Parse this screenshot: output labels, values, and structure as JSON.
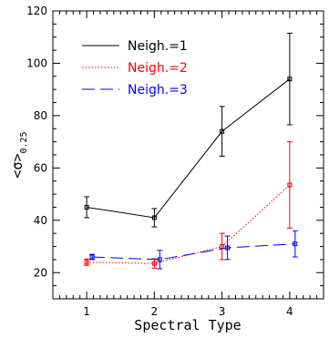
{
  "chart_data": {
    "type": "line",
    "xlabel": "Spectral Type",
    "ylabel": "<σ>0.25",
    "ylabel_main": "<σ>",
    "ylabel_sub": "0.25",
    "xlim": [
      0.5,
      4.5
    ],
    "ylim": [
      10,
      120
    ],
    "xticks": [
      1,
      2,
      3,
      4
    ],
    "yticks": [
      20,
      40,
      60,
      80,
      100,
      120
    ],
    "legend_position": "top-left",
    "grid": false,
    "series": [
      {
        "name": "Neigh.=1",
        "color": "#000000",
        "dash": "solid",
        "x": [
          1,
          2,
          3,
          4
        ],
        "y": [
          45,
          41,
          74,
          94
        ],
        "err": [
          4,
          3.5,
          9.5,
          17.5
        ]
      },
      {
        "name": "Neigh.=2",
        "color": "#ff0000",
        "dash": "dotted",
        "x": [
          1,
          2,
          3,
          4
        ],
        "y": [
          24,
          23.5,
          30,
          53.5
        ],
        "err": [
          1.2,
          1.8,
          5,
          16.5
        ]
      },
      {
        "name": "Neigh.=3",
        "color": "#0000ff",
        "dash": "dashed",
        "x": [
          1.08,
          2.08,
          3.08,
          4.08
        ],
        "y": [
          26,
          25,
          29.5,
          31
        ],
        "err": [
          1,
          3.5,
          4.5,
          5
        ]
      }
    ]
  }
}
